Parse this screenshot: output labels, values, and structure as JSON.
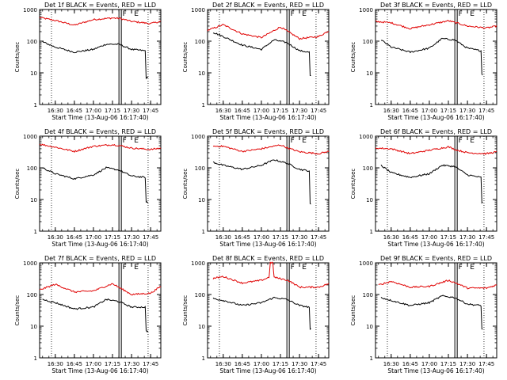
{
  "chart_data": [
    {
      "type": "line",
      "title": "Det 1f BLACK = Events, RED = LLD",
      "xlabel": "Start Time (13-Aug-06 16:17:40)",
      "ylabel": "Counts/sec",
      "yscale": "log",
      "ylim": [
        1,
        1000
      ],
      "xlim": [
        "16:17:40",
        "17:53:00"
      ],
      "x_ticks": [
        "16:30",
        "16:45",
        "17:00",
        "17:15",
        "17:30",
        "17:45"
      ],
      "y_ticks": [
        "1",
        "10",
        "100",
        "1000"
      ],
      "markers": [
        "F",
        "E"
      ],
      "series": [
        {
          "label": "RED = LLD",
          "color": "#e00000",
          "x": [
            "16:17:40",
            "16:30",
            "16:45",
            "17:00",
            "17:15",
            "17:21",
            "17:30",
            "17:45",
            "17:53"
          ],
          "y": [
            560,
            450,
            320,
            480,
            540,
            520,
            420,
            360,
            420
          ]
        },
        {
          "label": "BLACK = Events",
          "color": "#000000",
          "x": [
            "16:20",
            "16:30",
            "16:45",
            "17:00",
            "17:10",
            "17:20",
            "17:30",
            "17:40",
            "17:43"
          ],
          "y": [
            95,
            65,
            45,
            55,
            80,
            80,
            55,
            50,
            7
          ]
        }
      ]
    },
    {
      "type": "line",
      "title": "Det 2f BLACK = Events, RED = LLD",
      "xlabel": "Start Time (13-Aug-06 16:17:40)",
      "ylabel": "Counts/sec",
      "yscale": "log",
      "ylim": [
        1,
        1000
      ],
      "xlim": [
        "16:17:40",
        "17:53:00"
      ],
      "x_ticks": [
        "16:30",
        "16:45",
        "17:00",
        "17:15",
        "17:30",
        "17:45"
      ],
      "y_ticks": [
        "1",
        "10",
        "100",
        "1000"
      ],
      "markers": [
        "F",
        "E"
      ],
      "series": [
        {
          "label": "RED = LLD",
          "color": "#e00000",
          "x": [
            "16:17:40",
            "16:30",
            "16:45",
            "17:00",
            "17:15",
            "17:21",
            "17:30",
            "17:45",
            "17:53"
          ],
          "y": [
            220,
            330,
            170,
            130,
            280,
            200,
            120,
            140,
            210
          ]
        },
        {
          "label": "BLACK = Events",
          "color": "#000000",
          "x": [
            "16:22",
            "16:30",
            "16:45",
            "17:00",
            "17:10",
            "17:20",
            "17:30",
            "17:37",
            "17:39"
          ],
          "y": [
            190,
            140,
            75,
            55,
            110,
            90,
            50,
            45,
            8
          ]
        }
      ]
    },
    {
      "type": "line",
      "title": "Det 3f BLACK = Events, RED = LLD",
      "xlabel": "Start Time (13-Aug-06 16:17:40)",
      "ylabel": "Counts/sec",
      "yscale": "log",
      "ylim": [
        1,
        1000
      ],
      "xlim": [
        "16:17:40",
        "17:53:00"
      ],
      "x_ticks": [
        "16:30",
        "16:45",
        "17:00",
        "17:15",
        "17:30",
        "17:45"
      ],
      "y_ticks": [
        "1",
        "10",
        "100",
        "1000"
      ],
      "markers": [
        "F",
        "E"
      ],
      "series": [
        {
          "label": "RED = LLD",
          "color": "#e00000",
          "x": [
            "16:17:40",
            "16:30",
            "16:45",
            "17:00",
            "17:15",
            "17:21",
            "17:30",
            "17:45",
            "17:53"
          ],
          "y": [
            420,
            380,
            250,
            330,
            440,
            380,
            300,
            260,
            300
          ]
        },
        {
          "label": "BLACK = Events",
          "color": "#000000",
          "x": [
            "16:22",
            "16:30",
            "16:45",
            "17:00",
            "17:10",
            "17:20",
            "17:30",
            "17:40",
            "17:42"
          ],
          "y": [
            110,
            65,
            45,
            60,
            120,
            110,
            60,
            50,
            9
          ]
        }
      ]
    },
    {
      "type": "line",
      "title": "Det 4f BLACK = Events, RED = LLD",
      "xlabel": "Start Time (13-Aug-06 16:17:40)",
      "ylabel": "Counts/sec",
      "yscale": "log",
      "ylim": [
        1,
        1000
      ],
      "xlim": [
        "16:17:40",
        "17:53:00"
      ],
      "x_ticks": [
        "16:30",
        "16:45",
        "17:00",
        "17:15",
        "17:30",
        "17:45"
      ],
      "y_ticks": [
        "1",
        "10",
        "100",
        "1000"
      ],
      "markers": [
        "F",
        "E"
      ],
      "series": [
        {
          "label": "RED = LLD",
          "color": "#e00000",
          "x": [
            "16:17:40",
            "16:30",
            "16:45",
            "17:00",
            "17:15",
            "17:21",
            "17:30",
            "17:45",
            "17:53"
          ],
          "y": [
            560,
            450,
            330,
            480,
            540,
            500,
            420,
            380,
            420
          ]
        },
        {
          "label": "BLACK = Events",
          "color": "#000000",
          "x": [
            "16:20",
            "16:30",
            "16:45",
            "17:00",
            "17:10",
            "17:20",
            "17:30",
            "17:40",
            "17:43"
          ],
          "y": [
            100,
            65,
            45,
            60,
            100,
            85,
            55,
            50,
            8
          ]
        }
      ]
    },
    {
      "type": "line",
      "title": "Det 5f BLACK = Events, RED = LLD",
      "xlabel": "Start Time (13-Aug-06 16:17:40)",
      "ylabel": "Counts/sec",
      "yscale": "log",
      "ylim": [
        1,
        1000
      ],
      "xlim": [
        "16:17:40",
        "17:53:00"
      ],
      "x_ticks": [
        "16:30",
        "16:45",
        "17:00",
        "17:15",
        "17:30",
        "17:45"
      ],
      "y_ticks": [
        "1",
        "10",
        "100",
        "1000"
      ],
      "markers": [
        "F",
        "E"
      ],
      "series": [
        {
          "label": "RED = LLD",
          "color": "#e00000",
          "x": [
            "16:22",
            "16:30",
            "16:45",
            "17:00",
            "17:15",
            "17:21",
            "17:30",
            "17:45",
            "17:53"
          ],
          "y": [
            480,
            480,
            330,
            400,
            530,
            420,
            320,
            280,
            330
          ]
        },
        {
          "label": "BLACK = Events",
          "color": "#000000",
          "x": [
            "16:22",
            "16:30",
            "16:45",
            "17:00",
            "17:10",
            "17:20",
            "17:30",
            "17:37",
            "17:39"
          ],
          "y": [
            150,
            120,
            90,
            120,
            180,
            140,
            90,
            80,
            7
          ]
        }
      ]
    },
    {
      "type": "line",
      "title": "Det 6f BLACK = Events, RED = LLD",
      "xlabel": "Start Time (13-Aug-06 16:17:40)",
      "ylabel": "Counts/sec",
      "yscale": "log",
      "ylim": [
        1,
        1000
      ],
      "xlim": [
        "16:17:40",
        "17:53:00"
      ],
      "x_ticks": [
        "16:30",
        "16:45",
        "17:00",
        "17:15",
        "17:30",
        "17:45"
      ],
      "y_ticks": [
        "1",
        "10",
        "100",
        "1000"
      ],
      "markers": [
        "F",
        "E"
      ],
      "series": [
        {
          "label": "RED = LLD",
          "color": "#e00000",
          "x": [
            "16:17:40",
            "16:30",
            "16:45",
            "17:00",
            "17:15",
            "17:21",
            "17:30",
            "17:45",
            "17:53"
          ],
          "y": [
            420,
            400,
            280,
            360,
            460,
            370,
            300,
            280,
            320
          ]
        },
        {
          "label": "BLACK = Events",
          "color": "#000000",
          "x": [
            "16:22",
            "16:30",
            "16:45",
            "17:00",
            "17:10",
            "17:20",
            "17:30",
            "17:40",
            "17:42"
          ],
          "y": [
            120,
            70,
            50,
            65,
            120,
            110,
            60,
            50,
            8
          ]
        }
      ]
    },
    {
      "type": "line",
      "title": "Det 7f BLACK = Events, RED = LLD",
      "xlabel": "Start Time (13-Aug-06 16:17:40)",
      "ylabel": "Counts/sec",
      "yscale": "log",
      "ylim": [
        1,
        1000
      ],
      "xlim": [
        "16:17:40",
        "17:53:00"
      ],
      "x_ticks": [
        "16:30",
        "16:45",
        "17:00",
        "17:15",
        "17:30",
        "17:45"
      ],
      "y_ticks": [
        "1",
        "10",
        "100",
        "1000"
      ],
      "markers": [
        "F",
        "E"
      ],
      "series": [
        {
          "label": "RED = LLD",
          "color": "#e00000",
          "x": [
            "16:17:40",
            "16:30",
            "16:45",
            "17:00",
            "17:15",
            "17:21",
            "17:30",
            "17:45",
            "17:53"
          ],
          "y": [
            140,
            210,
            120,
            130,
            220,
            160,
            100,
            110,
            180
          ]
        },
        {
          "label": "BLACK = Events",
          "color": "#000000",
          "x": [
            "16:20",
            "16:30",
            "16:45",
            "17:00",
            "17:10",
            "17:20",
            "17:30",
            "17:40",
            "17:43"
          ],
          "y": [
            70,
            55,
            35,
            40,
            70,
            60,
            40,
            40,
            7
          ]
        }
      ]
    },
    {
      "type": "line",
      "title": "Det 8f BLACK = Events, RED = LLD",
      "xlabel": "Start Time (13-Aug-06 16:17:40)",
      "ylabel": "Counts/sec",
      "yscale": "log",
      "ylim": [
        1,
        1000
      ],
      "xlim": [
        "16:17:40",
        "17:53:00"
      ],
      "x_ticks": [
        "16:30",
        "16:45",
        "17:00",
        "17:15",
        "17:30",
        "17:45"
      ],
      "y_ticks": [
        "1",
        "10",
        "100",
        "1000"
      ],
      "markers": [
        "F",
        "E"
      ],
      "series": [
        {
          "label": "RED = LLD",
          "color": "#e00000",
          "x": [
            "16:22",
            "16:30",
            "16:45",
            "17:00",
            "17:06",
            "17:07",
            "17:09",
            "17:10",
            "17:21",
            "17:30",
            "17:45",
            "17:53"
          ],
          "y": [
            320,
            370,
            230,
            280,
            350,
            1000,
            1000,
            350,
            280,
            170,
            170,
            220
          ]
        },
        {
          "label": "BLACK = Events",
          "color": "#000000",
          "x": [
            "16:22",
            "16:30",
            "16:45",
            "17:00",
            "17:10",
            "17:20",
            "17:30",
            "17:37",
            "17:39"
          ],
          "y": [
            75,
            65,
            45,
            55,
            80,
            70,
            45,
            40,
            8
          ]
        }
      ]
    },
    {
      "type": "line",
      "title": "Det 9f BLACK = Events, RED = LLD",
      "xlabel": "Start Time (13-Aug-06 16:17:40)",
      "ylabel": "Counts/sec",
      "yscale": "log",
      "ylim": [
        1,
        1000
      ],
      "xlim": [
        "16:17:40",
        "17:53:00"
      ],
      "x_ticks": [
        "16:30",
        "16:45",
        "17:00",
        "17:15",
        "17:30",
        "17:45"
      ],
      "y_ticks": [
        "1",
        "10",
        "100",
        "1000"
      ],
      "markers": [
        "F",
        "E"
      ],
      "series": [
        {
          "label": "RED = LLD",
          "color": "#e00000",
          "x": [
            "16:20",
            "16:30",
            "16:45",
            "17:00",
            "17:15",
            "17:21",
            "17:30",
            "17:45",
            "17:53"
          ],
          "y": [
            200,
            260,
            170,
            180,
            280,
            230,
            160,
            160,
            200
          ]
        },
        {
          "label": "BLACK = Events",
          "color": "#000000",
          "x": [
            "16:22",
            "16:30",
            "16:45",
            "17:00",
            "17:10",
            "17:20",
            "17:30",
            "17:40",
            "17:42"
          ],
          "y": [
            80,
            65,
            45,
            55,
            90,
            80,
            50,
            45,
            8
          ]
        }
      ]
    }
  ]
}
